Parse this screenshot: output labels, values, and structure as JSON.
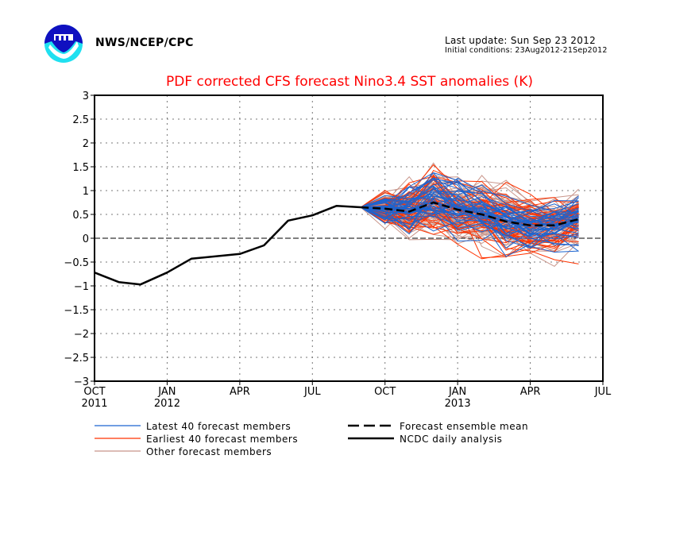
{
  "header": {
    "org": "NWS/NCEP/CPC",
    "last_update": "Last update: Sun Sep 23 2012",
    "initial_conditions": "Initial conditions: 23Aug2012-21Sep2012",
    "logo": "noaa-logo-icon"
  },
  "chart_data": {
    "type": "line",
    "title": "PDF corrected CFS forecast Nino3.4 SST anomalies (K)",
    "xlabel": "",
    "ylabel": "",
    "ylim": [
      -3,
      3
    ],
    "yticks": [
      3,
      2.5,
      2,
      1.5,
      1,
      0.5,
      0,
      -0.5,
      -1,
      -1.5,
      -2,
      -2.5,
      -3
    ],
    "ytick_labels": [
      "3",
      "2.5",
      "2",
      "1.5",
      "1",
      "0.5",
      "0",
      "−0.5",
      "−1",
      "−1.5",
      "−2",
      "−2.5",
      "−3"
    ],
    "xlim_months": [
      0,
      21
    ],
    "x_unit": "months since Oct 2011",
    "xticks": [
      {
        "month": 0,
        "label": "OCT",
        "year": "2011"
      },
      {
        "month": 3,
        "label": "JAN",
        "year": "2012"
      },
      {
        "month": 6,
        "label": "APR",
        "year": ""
      },
      {
        "month": 9,
        "label": "JUL",
        "year": ""
      },
      {
        "month": 12,
        "label": "OCT",
        "year": ""
      },
      {
        "month": 15,
        "label": "JAN",
        "year": "2013"
      },
      {
        "month": 18,
        "label": "APR",
        "year": ""
      },
      {
        "month": 21,
        "label": "JUL",
        "year": ""
      }
    ],
    "grid": true,
    "colors": {
      "title": "#ff0000",
      "latest": "#1c64d0",
      "earliest": "#ff3300",
      "other": "#c8958a",
      "observed": "#000000",
      "mean": "#000000"
    },
    "series": [
      {
        "name": "NCDC daily analysis",
        "style": "solid",
        "x": [
          0,
          1,
          1.9,
          3,
          4,
          6,
          7,
          8,
          9,
          10,
          11
        ],
        "y": [
          -0.72,
          -0.92,
          -0.97,
          -0.72,
          -0.43,
          -0.33,
          -0.15,
          0.37,
          0.48,
          0.68,
          0.65
        ]
      },
      {
        "name": "Forecast ensemble mean",
        "style": "dashed",
        "x": [
          11,
          12,
          13,
          14,
          15,
          16,
          17,
          18,
          19,
          20
        ],
        "y": [
          0.65,
          0.62,
          0.56,
          0.75,
          0.6,
          0.5,
          0.35,
          0.27,
          0.27,
          0.4
        ]
      }
    ],
    "ensemble": {
      "x": [
        11,
        12,
        13,
        14,
        15,
        16,
        17,
        18,
        19,
        20
      ],
      "spread": [
        0.0,
        0.2,
        0.3,
        0.35,
        0.32,
        0.3,
        0.28,
        0.25,
        0.22,
        0.25
      ],
      "groups": [
        {
          "name": "Other forecast members",
          "count": 80,
          "color_key": "other"
        },
        {
          "name": "Earliest 40 forecast members",
          "count": 40,
          "color_key": "earliest"
        },
        {
          "name": "Latest 40 forecast members",
          "count": 40,
          "color_key": "latest"
        }
      ]
    },
    "legend": {
      "placement": "bottom",
      "entries": [
        {
          "label": "Latest 40 forecast members",
          "color_key": "latest",
          "style": "thin"
        },
        {
          "label": "Earliest 40 forecast members",
          "color_key": "earliest",
          "style": "thin"
        },
        {
          "label": "Other forecast members",
          "color_key": "other",
          "style": "thin"
        },
        {
          "label": "Forecast ensemble mean",
          "color_key": "mean",
          "style": "dashed"
        },
        {
          "label": "NCDC daily analysis",
          "color_key": "observed",
          "style": "solid"
        }
      ]
    }
  }
}
